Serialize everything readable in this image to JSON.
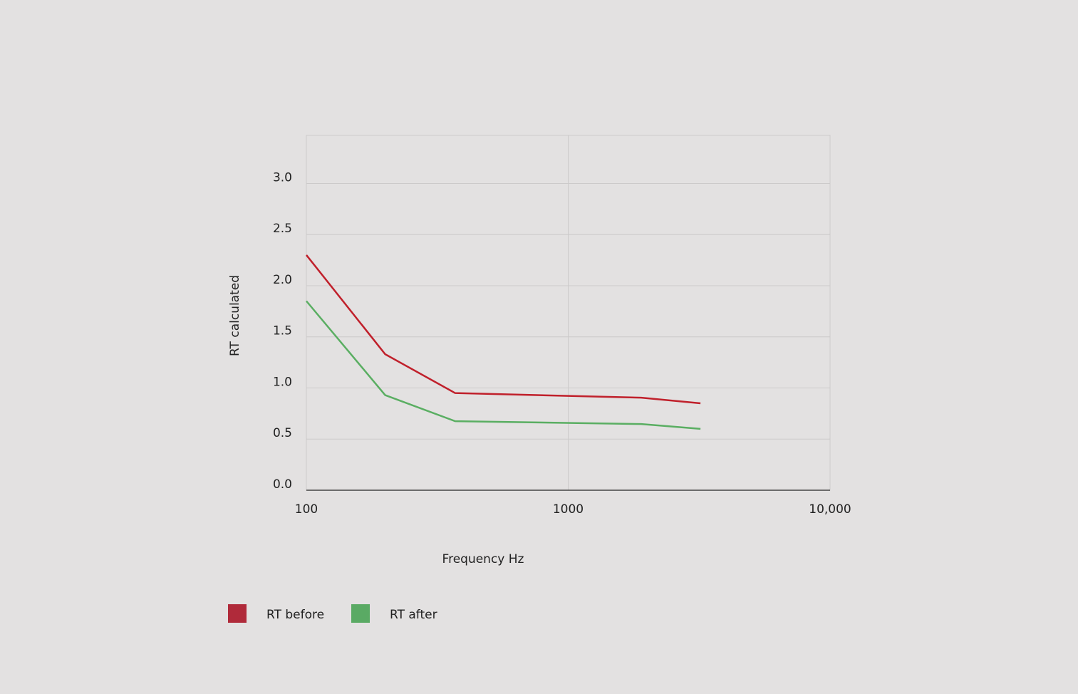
{
  "chart_data": {
    "type": "line",
    "x_label": "Frequency Hz",
    "y_label": "RT calculated",
    "x": [
      100,
      200,
      370,
      1900,
      3200
    ],
    "series": [
      {
        "name": "RT before",
        "color": "#c0202b",
        "legend_color": "#b02a3a",
        "values": [
          2.3,
          1.33,
          0.95,
          0.905,
          0.85
        ]
      },
      {
        "name": "RT after",
        "color": "#5aae62",
        "legend_color": "#5aaa64",
        "values": [
          1.85,
          0.93,
          0.675,
          0.647,
          0.6
        ]
      }
    ],
    "x_log": true,
    "xlim": [
      100,
      10000
    ],
    "xticks": [
      100,
      1000,
      {
        "value": 10000,
        "label": "10,000"
      }
    ],
    "ylim": [
      0,
      3.47
    ],
    "yticks": [
      {
        "value": 0,
        "label": "0.0"
      },
      0.5,
      {
        "value": 1,
        "label": "1.0"
      },
      1.5,
      {
        "value": 2,
        "label": "2.0"
      },
      2.5,
      {
        "value": 3,
        "label": "3.0"
      }
    ],
    "grid": true
  }
}
